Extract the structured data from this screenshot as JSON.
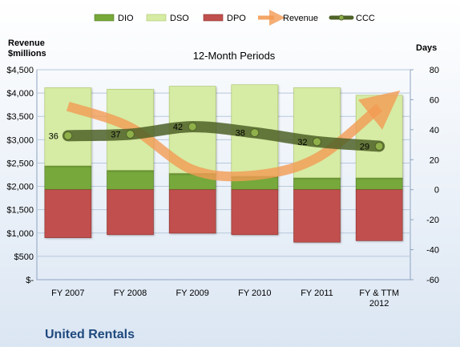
{
  "chart_data": {
    "type": "bar",
    "title": "12-Month Periods",
    "company": "United Rentals",
    "left_axis_label": [
      "Revenue",
      "$millions"
    ],
    "right_axis_label": "Days",
    "categories": [
      [
        "FY 2007"
      ],
      [
        "FY 2008"
      ],
      [
        "FY 2009"
      ],
      [
        "FY 2010"
      ],
      [
        "FY 2011"
      ],
      [
        "FY & TTM",
        "2012"
      ]
    ],
    "y_left": {
      "min": 0,
      "max": 4500,
      "ticks": [
        0,
        500,
        1000,
        1500,
        2000,
        2500,
        3000,
        3500,
        4000,
        4500
      ],
      "tick_labels": [
        "$-",
        "$500",
        "$1,000",
        "$1,500",
        "$2,000",
        "$2,500",
        "$3,000",
        "$3,500",
        "$4,000",
        "$4,500"
      ]
    },
    "y_right": {
      "min": -60,
      "max": 80,
      "ticks": [
        -60,
        -40,
        -20,
        0,
        20,
        40,
        60,
        80
      ],
      "tick_labels": [
        "-60",
        "-40",
        "-20",
        "0",
        "20",
        "40",
        "60",
        "80"
      ]
    },
    "series": [
      {
        "name": "DIO",
        "axis": "right",
        "kind": "stacked-bar",
        "color": "#77a83a",
        "values": [
          16,
          13,
          11,
          9,
          8,
          8
        ]
      },
      {
        "name": "DSO",
        "axis": "right",
        "kind": "stacked-bar",
        "color": "#d6eba3",
        "values": [
          52,
          54,
          58,
          61,
          60,
          55
        ]
      },
      {
        "name": "DPO",
        "axis": "right",
        "kind": "negative-bar",
        "color": "#c0504d",
        "values": [
          -32,
          -30,
          -29,
          -30,
          -35,
          -34
        ]
      },
      {
        "name": "Revenue",
        "axis": "left",
        "kind": "trend-arrow",
        "color": "#f39b54",
        "values": [
          3715,
          3267,
          2358,
          2237,
          2611,
          3690
        ]
      },
      {
        "name": "CCC",
        "axis": "right",
        "kind": "line",
        "color": "#4f6228",
        "values": [
          36,
          37,
          42,
          38,
          32,
          29
        ]
      }
    ],
    "data_labels": [
      "36",
      "37",
      "42",
      "38",
      "32",
      "29"
    ],
    "legend": {
      "position": "top"
    }
  }
}
